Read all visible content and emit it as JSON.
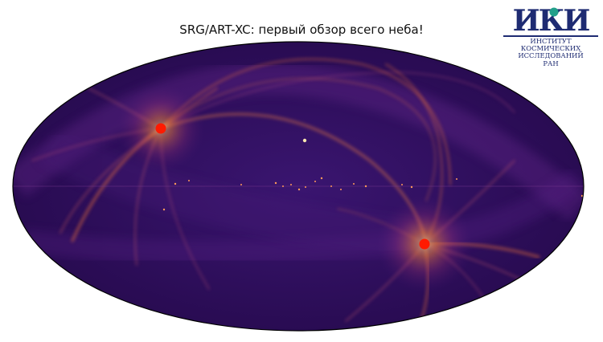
{
  "title": "SRG/ART-XC: первый обзор всего неба!",
  "logo": {
    "mark_text": "ИКИ",
    "lines": [
      "ИНСТИТУТ",
      "КОСМИЧЕСКИХ",
      "ИССЛЕДОВАНИЙ",
      "РАН"
    ]
  },
  "colors": {
    "background": "#2c1058",
    "arc": "#ff8a3a",
    "bright_source": "#ff1a00",
    "logo_blue": "#1e2b72"
  }
}
